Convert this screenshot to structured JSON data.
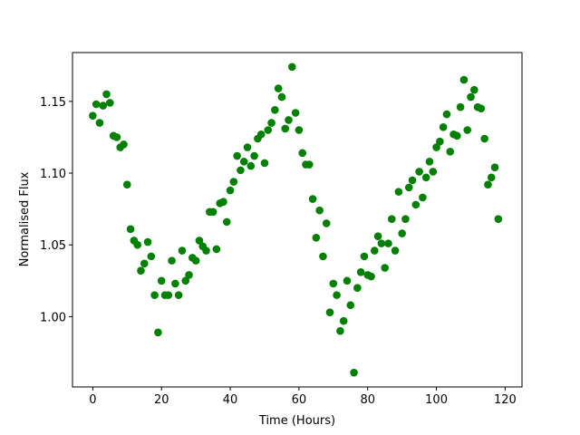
{
  "chart_data": {
    "type": "scatter",
    "xlabel": "Time (Hours)",
    "ylabel": "Normalised Flux",
    "color": "#008000",
    "x": [
      0,
      1,
      2,
      3,
      4,
      5,
      6,
      7,
      8,
      9,
      10,
      11,
      12,
      13,
      14,
      15,
      16,
      17,
      18,
      19,
      20,
      21,
      22,
      23,
      24,
      25,
      26,
      27,
      28,
      29,
      30,
      31,
      32,
      33,
      34,
      35,
      36,
      37,
      38,
      39,
      40,
      41,
      42,
      43,
      44,
      45,
      46,
      47,
      48,
      49,
      50,
      51,
      52,
      53,
      54,
      55,
      56,
      57,
      58,
      59,
      60,
      61,
      62,
      63,
      64,
      65,
      66,
      67,
      68,
      69,
      70,
      71,
      72,
      73,
      74,
      75,
      76,
      77,
      78,
      79,
      80,
      81,
      82,
      83,
      84,
      85,
      86,
      87,
      88,
      89,
      90,
      91,
      92,
      93,
      94,
      95,
      96,
      97,
      98,
      99,
      100,
      101,
      102,
      103,
      104,
      105,
      106,
      107,
      108,
      109,
      110,
      111,
      112,
      113,
      114,
      115,
      116,
      117,
      118
    ],
    "values": [
      1.14,
      1.148,
      1.135,
      1.147,
      1.155,
      1.149,
      1.126,
      1.125,
      1.118,
      1.12,
      1.092,
      1.061,
      1.053,
      1.05,
      1.032,
      1.037,
      1.052,
      1.042,
      1.015,
      0.989,
      1.025,
      1.015,
      1.015,
      1.039,
      1.023,
      1.015,
      1.046,
      1.025,
      1.029,
      1.041,
      1.039,
      1.053,
      1.049,
      1.046,
      1.073,
      1.073,
      1.047,
      1.079,
      1.08,
      1.066,
      1.088,
      1.094,
      1.112,
      1.102,
      1.108,
      1.118,
      1.105,
      1.112,
      1.124,
      1.127,
      1.107,
      1.13,
      1.135,
      1.144,
      1.159,
      1.153,
      1.131,
      1.137,
      1.174,
      1.142,
      1.13,
      1.114,
      1.106,
      1.106,
      1.082,
      1.055,
      1.074,
      1.042,
      1.065,
      1.003,
      1.023,
      1.015,
      0.99,
      0.997,
      1.025,
      1.008,
      0.961,
      1.02,
      1.031,
      1.042,
      1.029,
      1.028,
      1.046,
      1.056,
      1.051,
      1.034,
      1.051,
      1.068,
      1.046,
      1.087,
      1.058,
      1.068,
      1.09,
      1.095,
      1.078,
      1.101,
      1.083,
      1.097,
      1.108,
      1.101,
      1.118,
      1.122,
      1.132,
      1.141,
      1.115,
      1.127,
      1.126,
      1.146,
      1.165,
      1.13,
      1.153,
      1.158,
      1.146,
      1.145,
      1.124,
      1.092,
      1.097,
      1.104,
      1.068
    ],
    "xlim": [
      -5.9,
      124.9
    ],
    "ylim": [
      0.951,
      1.184
    ],
    "xticks": [
      0,
      20,
      40,
      60,
      80,
      100,
      120
    ],
    "yticks": [
      {
        "value": 1.0,
        "label": "1.00"
      },
      1.05,
      {
        "value": 1.1,
        "label": "1.10"
      },
      1.15
    ]
  }
}
